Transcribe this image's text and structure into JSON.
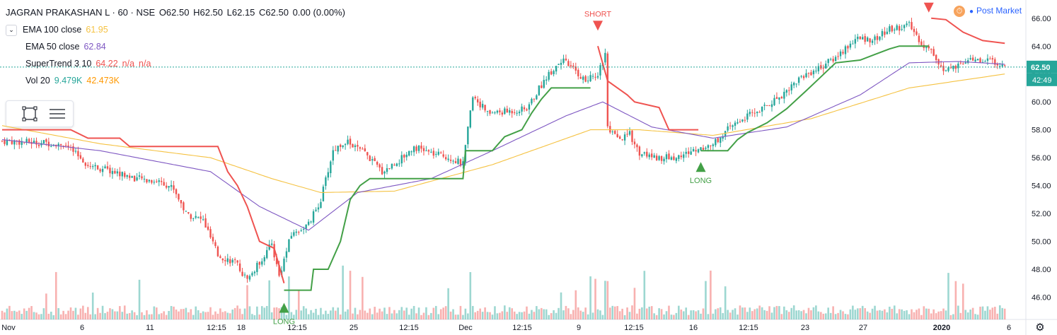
{
  "header": {
    "symbol": "JAGRAN PRAKASHAN L · 60 · NSE",
    "open": "O62.50",
    "high": "H62.50",
    "low": "L62.15",
    "close": "C62.50",
    "change": "0.00 (0.00%)"
  },
  "indicators": [
    {
      "label": "EMA 100 close",
      "value": "61.95",
      "color": "#f5c242"
    },
    {
      "label": "EMA 50 close",
      "value": "62.84",
      "color": "#7e57c2"
    },
    {
      "label": "SuperTrend 3 10",
      "value": "64.22",
      "extra1": "n/a",
      "extra2": "n/a",
      "color": "#ef5350"
    },
    {
      "label": "Vol 20",
      "value": "9.479K",
      "value2": "42.473K",
      "color": "#26a69a",
      "color2": "#ff9800"
    }
  ],
  "post_market": {
    "label": "Post Market",
    "icon": "clock-icon"
  },
  "colors": {
    "up": "#26a69a",
    "down": "#ef5350",
    "long": "#43a047",
    "short": "#ef5350",
    "ema100": "#f5c242",
    "ema50": "#7e57c2",
    "st_up": "#43a047",
    "st_down": "#ef5350"
  },
  "chart_data": {
    "type": "candlestick",
    "yaxis": {
      "min": 44.4,
      "max": 66.8,
      "ticks": [
        "66.00",
        "64.00",
        "62.00",
        "60.00",
        "58.00",
        "56.00",
        "54.00",
        "52.00",
        "50.00",
        "48.00",
        "46.00"
      ]
    },
    "xaxis": {
      "ticks": [
        "Nov",
        "6",
        "11",
        "12:15",
        "18",
        "12:15",
        "25",
        "12:15",
        "Dec",
        "12:15",
        "9",
        "12:15",
        "16",
        "12:15",
        "23",
        "27",
        "2020",
        "6"
      ]
    },
    "last_price": "62.50",
    "countdown": "42:49",
    "signals": [
      {
        "type": "LONG",
        "price": 46.2
      },
      {
        "type": "SHORT",
        "price": 64.5
      },
      {
        "type": "LONG",
        "price": 56.3
      },
      {
        "type": "SHORT",
        "price": 65.8
      }
    ],
    "anchors": {
      "price": [
        [
          0,
          57.2
        ],
        [
          25,
          57.0
        ],
        [
          35,
          55.5
        ],
        [
          45,
          55.0
        ],
        [
          55,
          54.5
        ],
        [
          65,
          54.3
        ],
        [
          70,
          53.8
        ],
        [
          75,
          52.0
        ],
        [
          82,
          51.5
        ],
        [
          88,
          49.0
        ],
        [
          95,
          48.5
        ],
        [
          100,
          47.2
        ],
        [
          105,
          48.5
        ],
        [
          110,
          49.8
        ],
        [
          113,
          47.5
        ],
        [
          118,
          50.5
        ],
        [
          125,
          51.2
        ],
        [
          130,
          53.0
        ],
        [
          135,
          56.5
        ],
        [
          140,
          57.2
        ],
        [
          148,
          56.3
        ],
        [
          155,
          55.0
        ],
        [
          162,
          55.8
        ],
        [
          168,
          56.8
        ],
        [
          175,
          56.3
        ],
        [
          183,
          56.0
        ],
        [
          188,
          55.5
        ],
        [
          192,
          60.5
        ],
        [
          198,
          59.2
        ],
        [
          206,
          59.3
        ],
        [
          214,
          59.5
        ],
        [
          222,
          61.8
        ],
        [
          228,
          63.0
        ],
        [
          232,
          62.5
        ],
        [
          238,
          61.5
        ],
        [
          243,
          62.0
        ],
        [
          246,
          63.5
        ],
        [
          247,
          58.0
        ],
        [
          252,
          57.2
        ],
        [
          256,
          57.7
        ],
        [
          260,
          56.3
        ],
        [
          268,
          56.0
        ],
        [
          275,
          56.0
        ],
        [
          282,
          56.5
        ],
        [
          290,
          57.0
        ],
        [
          296,
          58.0
        ],
        [
          302,
          58.8
        ],
        [
          310,
          59.5
        ],
        [
          318,
          60.5
        ],
        [
          326,
          61.8
        ],
        [
          334,
          62.5
        ],
        [
          340,
          63.2
        ],
        [
          348,
          64.5
        ],
        [
          356,
          64.5
        ],
        [
          362,
          65.2
        ],
        [
          370,
          65.5
        ],
        [
          376,
          64.0
        ],
        [
          380,
          63.5
        ],
        [
          384,
          62.2
        ],
        [
          390,
          62.5
        ],
        [
          396,
          63.0
        ],
        [
          402,
          63.0
        ],
        [
          409,
          62.5
        ]
      ],
      "ema100": [
        [
          0,
          58.3
        ],
        [
          40,
          57.0
        ],
        [
          85,
          56.0
        ],
        [
          110,
          54.5
        ],
        [
          130,
          53.5
        ],
        [
          160,
          53.6
        ],
        [
          200,
          55.5
        ],
        [
          240,
          58.0
        ],
        [
          260,
          58.0
        ],
        [
          290,
          57.6
        ],
        [
          330,
          58.8
        ],
        [
          370,
          61.0
        ],
        [
          409,
          62.0
        ]
      ],
      "ema50": [
        [
          0,
          57.3
        ],
        [
          40,
          56.5
        ],
        [
          85,
          55.0
        ],
        [
          105,
          52.5
        ],
        [
          125,
          50.8
        ],
        [
          145,
          53.5
        ],
        [
          175,
          54.5
        ],
        [
          200,
          56.5
        ],
        [
          230,
          59.0
        ],
        [
          245,
          60.0
        ],
        [
          265,
          58.2
        ],
        [
          290,
          57.4
        ],
        [
          320,
          58.2
        ],
        [
          350,
          60.5
        ],
        [
          370,
          62.8
        ],
        [
          390,
          62.9
        ],
        [
          409,
          62.7
        ]
      ],
      "supertrend": {
        "down": [
          [
            0,
            58.0
          ],
          [
            28,
            58.0
          ],
          [
            35,
            57.4
          ],
          [
            48,
            57.4
          ],
          [
            52,
            56.8
          ],
          [
            88,
            56.8
          ],
          [
            92,
            55.0
          ],
          [
            96,
            54.0
          ],
          [
            100,
            52.5
          ],
          [
            105,
            50.0
          ],
          [
            111,
            49.5
          ],
          [
            115,
            47.0
          ]
        ],
        "up": [
          [
            115,
            46.5
          ],
          [
            126,
            46.5
          ],
          [
            127,
            48.0
          ],
          [
            133,
            48.0
          ],
          [
            138,
            50.0
          ],
          [
            142,
            53.0
          ],
          [
            146,
            54.0
          ],
          [
            150,
            54.5
          ],
          [
            188,
            54.5
          ],
          [
            189,
            56.5
          ],
          [
            200,
            56.5
          ],
          [
            205,
            57.5
          ],
          [
            212,
            58.0
          ],
          [
            216,
            59.2
          ],
          [
            220,
            60.2
          ],
          [
            224,
            61.0
          ],
          [
            240,
            61.0
          ]
        ],
        "down2": [
          [
            243,
            64.0
          ],
          [
            247,
            61.5
          ],
          [
            255,
            60.5
          ],
          [
            258,
            60.0
          ],
          [
            268,
            59.6
          ],
          [
            272,
            58.0
          ],
          [
            284,
            58.0
          ]
        ],
        "up2": [
          [
            285,
            56.5
          ],
          [
            296,
            56.5
          ],
          [
            300,
            57.3
          ],
          [
            304,
            57.8
          ],
          [
            312,
            58.5
          ],
          [
            320,
            59.5
          ],
          [
            328,
            60.8
          ],
          [
            334,
            61.8
          ],
          [
            340,
            62.8
          ],
          [
            350,
            63.0
          ],
          [
            356,
            63.4
          ],
          [
            362,
            63.8
          ],
          [
            366,
            64.0
          ],
          [
            378,
            64.0
          ]
        ],
        "down3": [
          [
            379,
            66.0
          ],
          [
            385,
            65.9
          ],
          [
            392,
            65.0
          ],
          [
            400,
            64.4
          ],
          [
            409,
            64.2
          ]
        ]
      }
    }
  }
}
